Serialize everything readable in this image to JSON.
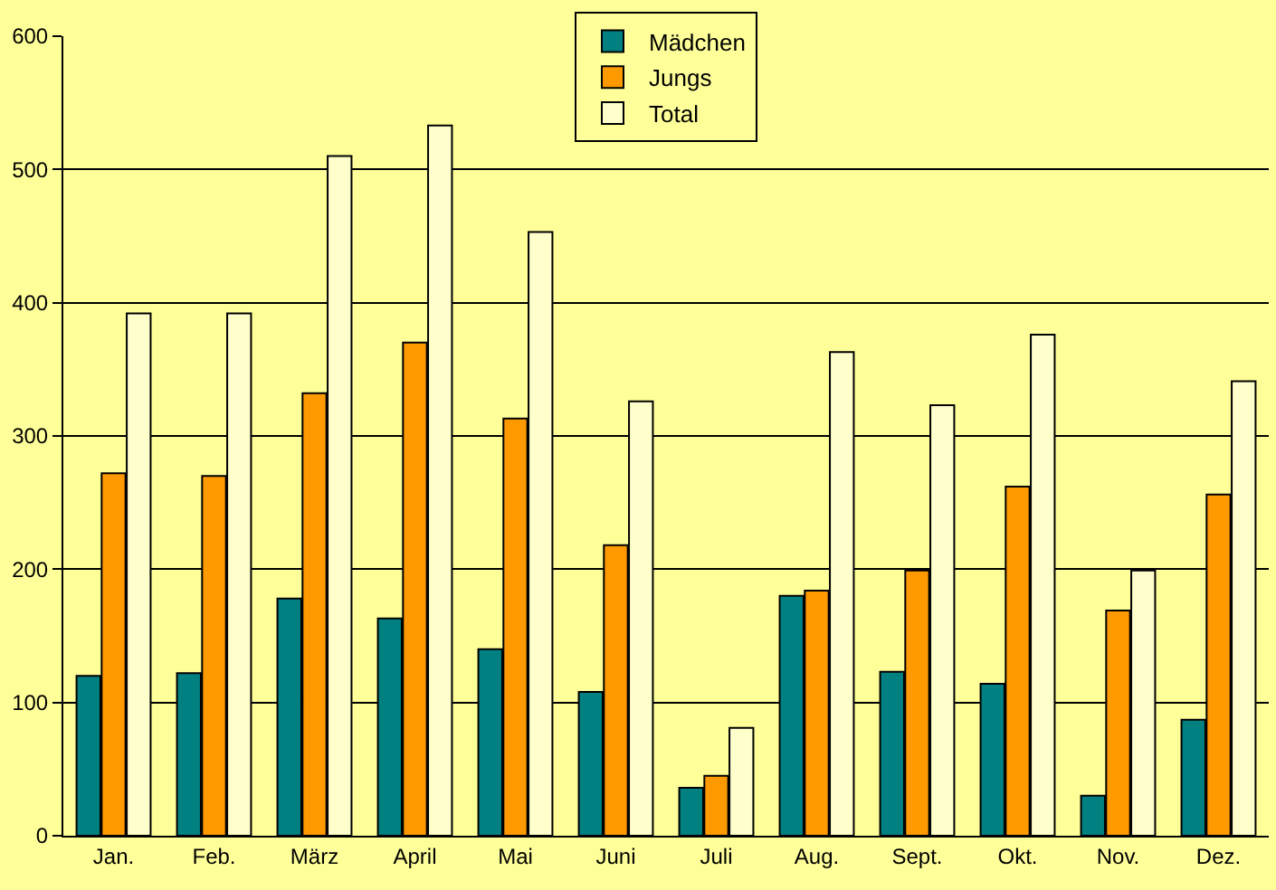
{
  "chart_data": {
    "type": "bar",
    "categories": [
      "Jan.",
      "Feb.",
      "März",
      "April",
      "Mai",
      "Juni",
      "Juli",
      "Aug.",
      "Sept.",
      "Okt.",
      "Nov.",
      "Dez."
    ],
    "series": [
      {
        "name": "Mädchen",
        "color": "#008080",
        "values": [
          120,
          122,
          178,
          163,
          140,
          108,
          36,
          180,
          123,
          114,
          30,
          87
        ]
      },
      {
        "name": "Jungs",
        "color": "#ff9900",
        "values": [
          272,
          270,
          332,
          370,
          313,
          218,
          45,
          184,
          199,
          262,
          169,
          256
        ]
      },
      {
        "name": "Total",
        "color": "#ffffcc",
        "values": [
          392,
          392,
          510,
          533,
          453,
          326,
          81,
          363,
          323,
          376,
          199,
          341
        ]
      }
    ],
    "ylim": [
      0,
      600
    ],
    "yticks": [
      0,
      100,
      200,
      300,
      400,
      500,
      600
    ],
    "grid": "y",
    "legend": "top"
  }
}
